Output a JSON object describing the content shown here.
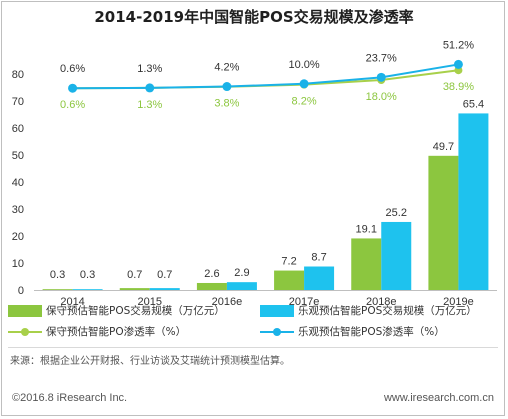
{
  "title": "2014-2019年中国智能POS交易规模及渗透率",
  "colors": {
    "conservative": "#8cc63f",
    "optimistic": "#1ec2ee",
    "conservative_line": "#a8d04a",
    "optimistic_line": "#1ab2e8",
    "axis": "#bfbfbf"
  },
  "chart_data": {
    "type": "bar",
    "categories": [
      "2014",
      "2015",
      "2016e",
      "2017e",
      "2018e",
      "2019e"
    ],
    "ylim": [
      0,
      80
    ],
    "yticks": [
      0,
      10,
      20,
      30,
      40,
      50,
      60,
      70,
      80
    ],
    "series": [
      {
        "name": "保守预估智能POS交易规模（万亿元）",
        "kind": "bar",
        "values": [
          0.3,
          0.7,
          2.6,
          7.2,
          19.1,
          49.7
        ]
      },
      {
        "name": "乐观预估智能POS交易规模（万亿元）",
        "kind": "bar",
        "values": [
          0.3,
          0.7,
          2.9,
          8.7,
          25.2,
          65.4
        ]
      },
      {
        "name": "保守预估智能PO渗透率（%）",
        "kind": "line",
        "values": [
          0.6,
          1.3,
          3.8,
          8.2,
          18.0,
          38.9
        ]
      },
      {
        "name": "乐观预估智能POS渗透率（%）",
        "kind": "line",
        "values": [
          0.6,
          1.3,
          4.2,
          10.0,
          23.7,
          51.2
        ]
      }
    ],
    "bar_labels": {
      "conservative": [
        "0.3",
        "0.7",
        "2.6",
        "7.2",
        "19.1",
        "49.7"
      ],
      "optimistic": [
        "0.3",
        "0.7",
        "2.9",
        "8.7",
        "25.2",
        "65.4"
      ]
    },
    "rate_labels": {
      "conservative": [
        "0.6%",
        "1.3%",
        "3.8%",
        "8.2%",
        "18.0%",
        "38.9%"
      ],
      "optimistic": [
        "0.6%",
        "1.3%",
        "4.2%",
        "10.0%",
        "23.7%",
        "51.2%"
      ]
    },
    "grid": false,
    "legend": "bottom"
  },
  "legend": {
    "bar_conservative": "保守预估智能POS交易规模（万亿元）",
    "bar_optimistic": "乐观预估智能POS交易规模（万亿元）",
    "line_conservative": "保守预估智能PO渗透率（%）",
    "line_optimistic": "乐观预估智能POS渗透率（%）"
  },
  "source": "来源：根据企业公开财报、行业访谈及艾瑞统计预测模型估算。",
  "footer": {
    "copyright": "©2016.8 iResearch Inc.",
    "website": "www.iresearch.com.cn"
  }
}
